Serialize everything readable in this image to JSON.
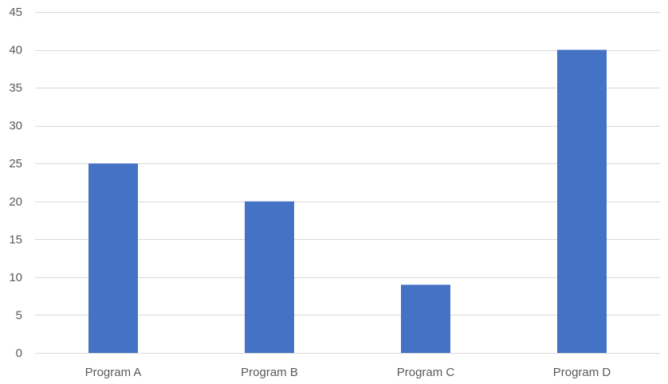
{
  "chart_data": {
    "type": "bar",
    "categories": [
      "Program A",
      "Program B",
      "Program C",
      "Program D"
    ],
    "values": [
      25,
      20,
      9,
      40
    ],
    "title": "",
    "xlabel": "",
    "ylabel": "",
    "ylim": [
      0,
      45
    ],
    "y_ticks": [
      0,
      5,
      10,
      15,
      20,
      25,
      30,
      35,
      40,
      45
    ],
    "grid": true,
    "legend": "none",
    "colors": {
      "bar": "#4472C4",
      "grid": "#D9D9D9",
      "axis": "#D9D9D9",
      "text": "#595959"
    }
  }
}
